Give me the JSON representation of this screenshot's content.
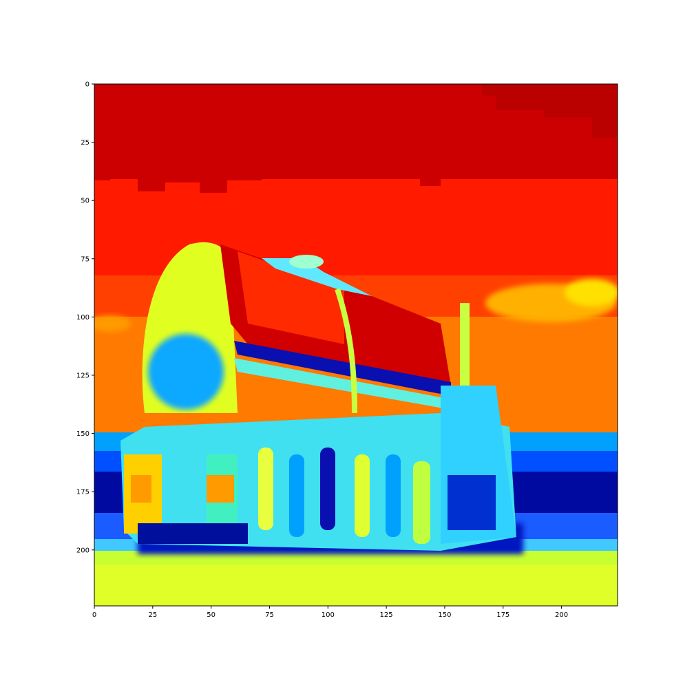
{
  "chart_data": {
    "type": "heatmap",
    "colormap": "jet",
    "image_extent": [
      0,
      224,
      224,
      0
    ],
    "x_axis": {
      "range": [
        0,
        224
      ],
      "ticks": [
        0,
        25,
        50,
        75,
        100,
        125,
        150,
        175,
        200
      ]
    },
    "y_axis": {
      "range": [
        224,
        0
      ],
      "ticks": [
        0,
        25,
        50,
        75,
        100,
        125,
        150,
        175,
        200
      ],
      "inverted": true
    },
    "x_tick_labels": [
      "0",
      "25",
      "50",
      "75",
      "100",
      "125",
      "150",
      "175",
      "200"
    ],
    "y_tick_labels": [
      "0",
      "25",
      "50",
      "75",
      "100",
      "125",
      "150",
      "175",
      "200"
    ],
    "grid": false,
    "legend": "none",
    "colors": {
      "dark_red": "#cc0000",
      "red": "#ff1a00",
      "red_orange": "#ff4000",
      "orange": "#ff8000",
      "yellow": "#ffe600",
      "yellow_green": "#d0ff20",
      "cyan": "#20f0ff",
      "light_blue": "#00a0ff",
      "blue": "#0040ff",
      "navy": "#000090"
    },
    "image_regions": [
      {
        "name": "sky-top",
        "value": 0.95,
        "x": [
          0,
          224
        ],
        "y": [
          0,
          45
        ]
      },
      {
        "name": "sky-middle",
        "value": 0.88,
        "x": [
          0,
          224
        ],
        "y": [
          40,
          100
        ]
      },
      {
        "name": "sky-lower",
        "value": 0.8,
        "x": [
          0,
          224
        ],
        "y": [
          95,
          149
        ]
      },
      {
        "name": "clouds",
        "value": 0.72,
        "x": [
          175,
          224
        ],
        "y": [
          82,
          100
        ]
      },
      {
        "name": "tree-line",
        "value": 0.2,
        "x": [
          0,
          224
        ],
        "y": [
          149,
          192
        ]
      },
      {
        "name": "ground",
        "value": 0.55,
        "x": [
          0,
          224
        ],
        "y": [
          196,
          224
        ]
      },
      {
        "name": "tank-end",
        "value": 0.62,
        "x": [
          22,
          62
        ],
        "y": [
          68,
          150
        ]
      },
      {
        "name": "tank-body",
        "value": 0.92,
        "x": [
          55,
          152
        ],
        "y": [
          70,
          130
        ]
      },
      {
        "name": "truck-chassis",
        "value": 0.5,
        "x": [
          14,
          180
        ],
        "y": [
          130,
          200
        ]
      }
    ]
  }
}
